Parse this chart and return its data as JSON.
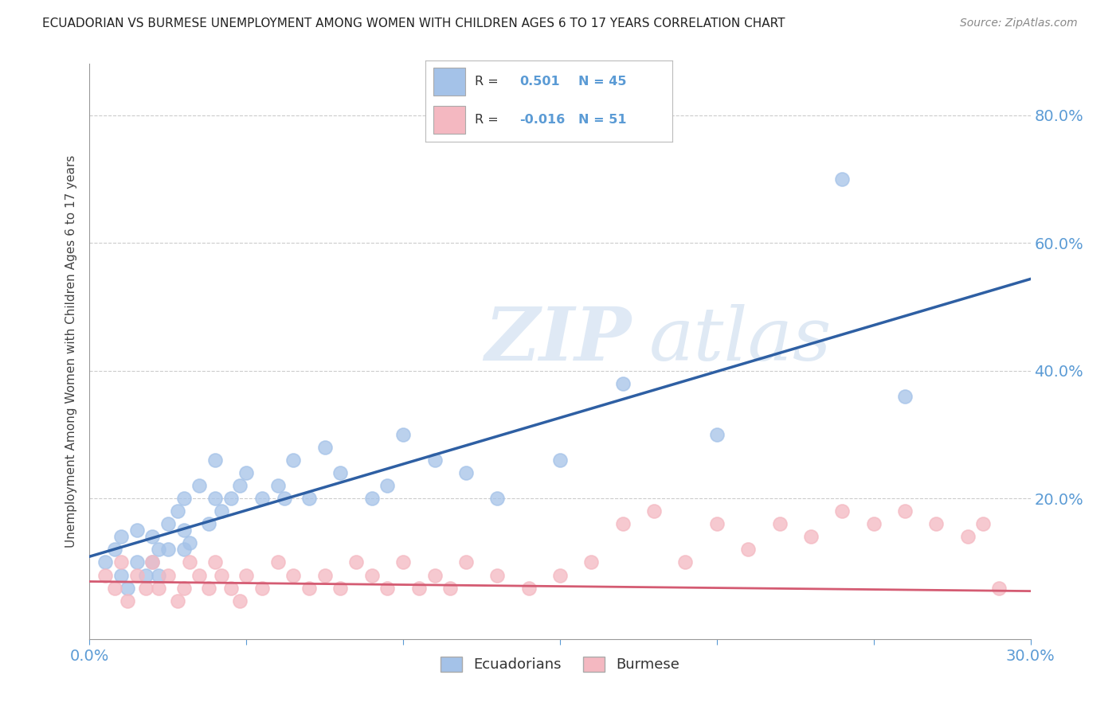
{
  "title": "ECUADORIAN VS BURMESE UNEMPLOYMENT AMONG WOMEN WITH CHILDREN AGES 6 TO 17 YEARS CORRELATION CHART",
  "source": "Source: ZipAtlas.com",
  "xlim": [
    0.0,
    0.3
  ],
  "ylim": [
    -0.02,
    0.88
  ],
  "legend_label1": "Ecuadorians",
  "legend_label2": "Burmese",
  "R1": 0.501,
  "N1": 45,
  "R2": -0.016,
  "N2": 51,
  "color1": "#a4c2e8",
  "color2": "#f4b8c1",
  "trendline1_color": "#2e5fa3",
  "trendline2_color": "#d45b72",
  "watermark_zip": "ZIP",
  "watermark_atlas": "atlas",
  "scatter1_x": [
    0.005,
    0.008,
    0.01,
    0.01,
    0.012,
    0.015,
    0.015,
    0.018,
    0.02,
    0.02,
    0.022,
    0.022,
    0.025,
    0.025,
    0.028,
    0.03,
    0.03,
    0.03,
    0.032,
    0.035,
    0.038,
    0.04,
    0.04,
    0.042,
    0.045,
    0.048,
    0.05,
    0.055,
    0.06,
    0.062,
    0.065,
    0.07,
    0.075,
    0.08,
    0.09,
    0.095,
    0.1,
    0.11,
    0.12,
    0.13,
    0.15,
    0.17,
    0.2,
    0.24,
    0.26
  ],
  "scatter1_y": [
    0.1,
    0.12,
    0.08,
    0.14,
    0.06,
    0.1,
    0.15,
    0.08,
    0.14,
    0.1,
    0.12,
    0.08,
    0.16,
    0.12,
    0.18,
    0.12,
    0.2,
    0.15,
    0.13,
    0.22,
    0.16,
    0.2,
    0.26,
    0.18,
    0.2,
    0.22,
    0.24,
    0.2,
    0.22,
    0.2,
    0.26,
    0.2,
    0.28,
    0.24,
    0.2,
    0.22,
    0.3,
    0.26,
    0.24,
    0.2,
    0.26,
    0.38,
    0.3,
    0.7,
    0.36
  ],
  "scatter2_x": [
    0.005,
    0.008,
    0.01,
    0.012,
    0.015,
    0.018,
    0.02,
    0.022,
    0.025,
    0.028,
    0.03,
    0.032,
    0.035,
    0.038,
    0.04,
    0.042,
    0.045,
    0.048,
    0.05,
    0.055,
    0.06,
    0.065,
    0.07,
    0.075,
    0.08,
    0.085,
    0.09,
    0.095,
    0.1,
    0.105,
    0.11,
    0.115,
    0.12,
    0.13,
    0.14,
    0.15,
    0.16,
    0.17,
    0.18,
    0.19,
    0.2,
    0.21,
    0.22,
    0.23,
    0.24,
    0.25,
    0.26,
    0.27,
    0.28,
    0.285,
    0.29
  ],
  "scatter2_y": [
    0.08,
    0.06,
    0.1,
    0.04,
    0.08,
    0.06,
    0.1,
    0.06,
    0.08,
    0.04,
    0.06,
    0.1,
    0.08,
    0.06,
    0.1,
    0.08,
    0.06,
    0.04,
    0.08,
    0.06,
    0.1,
    0.08,
    0.06,
    0.08,
    0.06,
    0.1,
    0.08,
    0.06,
    0.1,
    0.06,
    0.08,
    0.06,
    0.1,
    0.08,
    0.06,
    0.08,
    0.1,
    0.16,
    0.18,
    0.1,
    0.16,
    0.12,
    0.16,
    0.14,
    0.18,
    0.16,
    0.18,
    0.16,
    0.14,
    0.16,
    0.06
  ]
}
